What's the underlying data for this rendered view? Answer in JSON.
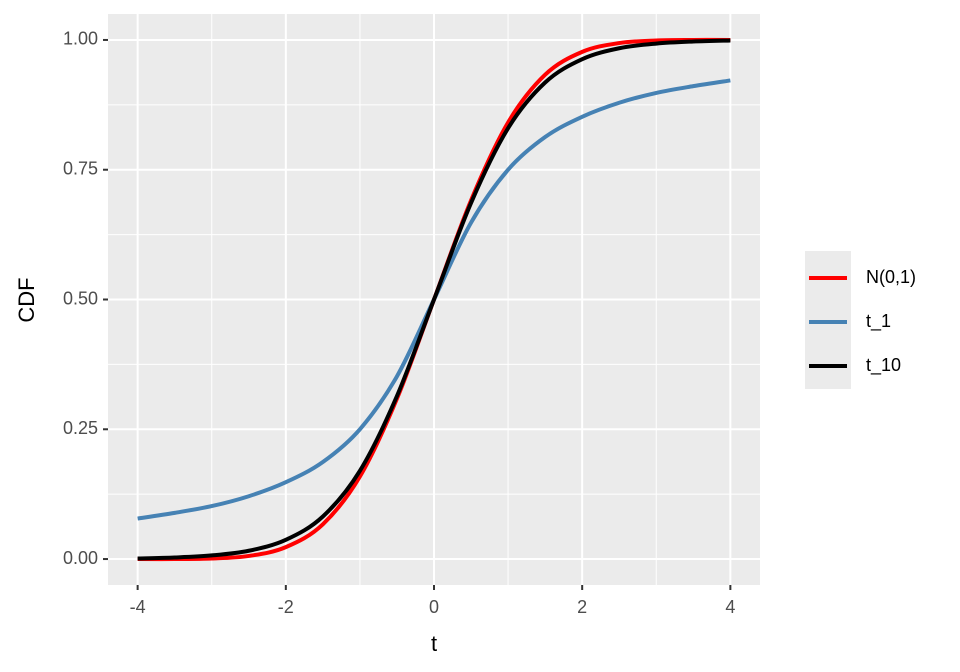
{
  "chart_data": {
    "type": "line",
    "x_label": "t",
    "y_label": "CDF",
    "x": [
      -4,
      -3.5,
      -3,
      -2.5,
      -2,
      -1.5,
      -1,
      -0.5,
      0,
      0.5,
      1,
      1.5,
      2,
      2.5,
      3,
      3.5,
      4
    ],
    "series": [
      {
        "name": "N(0,1)",
        "color": "#ff0000",
        "values": [
          0.0,
          0.0,
          0.001,
          0.006,
          0.023,
          0.067,
          0.159,
          0.309,
          0.5,
          0.691,
          0.841,
          0.933,
          0.977,
          0.994,
          0.999,
          1.0,
          1.0
        ]
      },
      {
        "name": "t_1",
        "color": "#4682b4",
        "values": [
          0.078,
          0.089,
          0.102,
          0.121,
          0.148,
          0.187,
          0.25,
          0.352,
          0.5,
          0.648,
          0.75,
          0.813,
          0.852,
          0.879,
          0.898,
          0.911,
          0.922
        ]
      },
      {
        "name": "t_10",
        "color": "#000000",
        "values": [
          0.001,
          0.003,
          0.007,
          0.016,
          0.037,
          0.082,
          0.17,
          0.314,
          0.5,
          0.686,
          0.83,
          0.918,
          0.963,
          0.984,
          0.993,
          0.997,
          0.999
        ]
      }
    ],
    "xlim": [
      -4.4,
      4.4
    ],
    "xticks": [
      -4,
      -2,
      0,
      2,
      4
    ],
    "ylim": [
      -0.05,
      1.05
    ],
    "yticks": [
      {
        "value": 0,
        "label": "0.00"
      },
      {
        "value": 0.25,
        "label": "0.25"
      },
      {
        "value": 0.5,
        "label": "0.50"
      },
      {
        "value": 0.75,
        "label": "0.75"
      },
      {
        "value": 1,
        "label": "1.00"
      }
    ],
    "grid": true,
    "minor_grid": true,
    "legend": "right"
  }
}
